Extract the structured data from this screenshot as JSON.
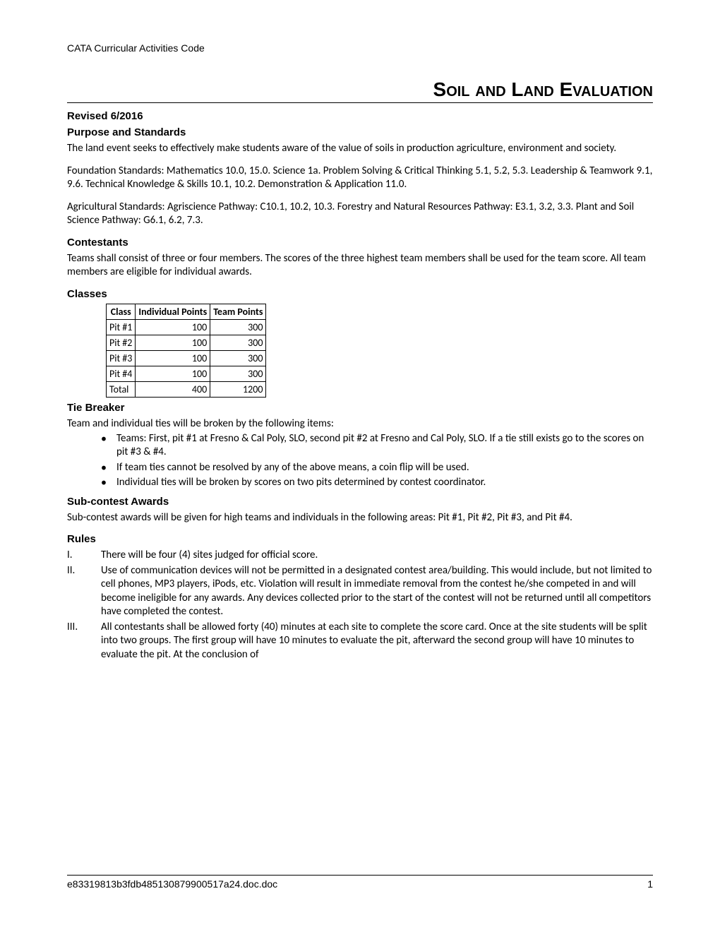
{
  "header": "CATA Curricular Activities Code",
  "title": "Soil and Land Evaluation",
  "revised": "Revised 6/2016",
  "purpose": {
    "heading": "Purpose and Standards",
    "para1": "The land event seeks to effectively make students aware of the value of soils in production agriculture, environment and society.",
    "para2": "Foundation Standards:  Mathematics 10.0, 15.0.  Science 1a. Problem Solving & Critical Thinking 5.1, 5.2, 5.3. Leadership & Teamwork 9.1, 9.6.  Technical Knowledge & Skills 10.1, 10.2. Demonstration & Application 11.0.",
    "para3": "Agricultural Standards: Agriscience Pathway:  C10.1, 10.2, 10.3.  Forestry and Natural Resources Pathway:  E3.1, 3.2, 3.3.  Plant and Soil Science Pathway:  G6.1, 6.2, 7.3."
  },
  "contestants": {
    "heading": "Contestants",
    "para": "Teams shall consist of three or four members.  The scores of the three highest team members shall be used for the team score.  All team members are eligible for individual awards."
  },
  "classes": {
    "heading": "Classes",
    "columns": [
      "Class",
      "Individual Points",
      "Team Points"
    ],
    "rows": [
      [
        "Pit #1",
        "100",
        "300"
      ],
      [
        "Pit #2",
        "100",
        "300"
      ],
      [
        "Pit #3",
        "100",
        "300"
      ],
      [
        "Pit #4",
        "100",
        "300"
      ],
      [
        "Total",
        "400",
        "1200"
      ]
    ]
  },
  "tiebreaker": {
    "heading": "Tie Breaker",
    "intro": "Team and individual ties will be broken by the following items:",
    "bullets": [
      "Teams:  First, pit #1 at Fresno & Cal Poly, SLO, second pit #2 at Fresno and Cal Poly, SLO.  If a tie still exists go to the scores on pit #3 & #4.",
      "If team ties cannot be resolved by any of the above means, a coin flip will be used.",
      "Individual ties will be broken by scores on two pits determined by contest coordinator."
    ]
  },
  "subcontest": {
    "heading": "Sub-contest Awards",
    "para": "Sub-contest awards will be given for high teams and individuals in the following areas: Pit #1, Pit #2, Pit #3, and Pit #4."
  },
  "rules": {
    "heading": "Rules",
    "items": [
      {
        "num": "I.",
        "text": "There will be four (4) sites judged for official score."
      },
      {
        "num": "II.",
        "text": "Use of communication devices will not be permitted in a designated contest area/building.  This would include, but not limited to cell phones, MP3 players, iPods, etc.  Violation will result in immediate removal from the contest he/she competed in and will become ineligible for any awards.  Any devices collected prior to the start of the contest will not be returned until all competitors have completed the contest."
      },
      {
        "num": "III.",
        "text": "All contestants shall be allowed forty (40) minutes at each site to complete the score card. Once at the site students will be split into two groups.  The first group will have 10 minutes to evaluate the pit, afterward the second group will have 10 minutes to evaluate the pit.  At the conclusion of"
      }
    ]
  },
  "footer": {
    "filename": "e83319813b3fdb485130879900517a24.doc.doc",
    "page": "1"
  }
}
